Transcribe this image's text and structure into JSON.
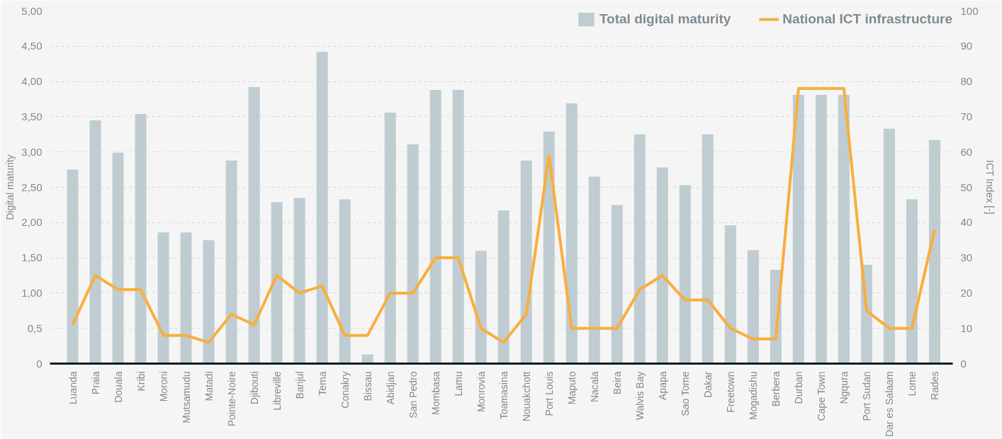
{
  "chart_data": {
    "type": "bar",
    "ylabel": "Digital maturity",
    "y2label": "ICT Index [-]",
    "categories": [
      "Luanda",
      "Praia",
      "Douala",
      "Kribi",
      "Moroni",
      "Mutsamudu",
      "Matadi",
      "Pointe-Noire",
      "Djibouti",
      "Libreville",
      "Banjul",
      "Tema",
      "Conakry",
      "Bissau",
      "Abidjan",
      "San Pedro",
      "Mombasa",
      "Lamu",
      "Monrovia",
      "Toamasina",
      "Nouakchott",
      "Port Louis",
      "Maputo",
      "Nacala",
      "Beira",
      "Walvis Bay",
      "Apapa",
      "Sao Tome",
      "Dakar",
      "Freetown",
      "Mogadishu",
      "Berbera",
      "Durban",
      "Cape Town",
      "Ngqura",
      "Port Sudan",
      "Dar es Salaam",
      "Lome",
      "Rades"
    ],
    "series": [
      {
        "name": "Total digital maturity",
        "color": "#bfccd1",
        "values": [
          2.75,
          3.45,
          2.99,
          3.54,
          1.86,
          1.86,
          1.75,
          2.88,
          3.92,
          2.29,
          2.35,
          4.42,
          2.33,
          0.13,
          3.56,
          3.11,
          3.88,
          3.88,
          1.6,
          2.17,
          2.88,
          3.29,
          3.69,
          2.65,
          2.25,
          3.25,
          2.78,
          2.53,
          3.25,
          1.96,
          1.61,
          1.33,
          3.81,
          3.81,
          3.81,
          1.4,
          3.33,
          2.33,
          3.17
        ]
      },
      {
        "name": "National ICT infrastructure",
        "type": "line",
        "axis": "y2",
        "color": "#f9ae3c",
        "values": [
          11,
          25,
          21,
          21,
          8,
          8,
          6,
          14,
          11,
          25,
          20,
          22,
          8,
          8,
          20,
          20,
          30,
          30,
          10,
          6,
          14,
          59,
          10,
          10,
          10,
          21,
          25,
          18,
          18,
          10,
          7,
          7,
          78,
          78,
          78,
          15,
          10,
          10,
          38
        ]
      }
    ],
    "ylim": [
      0,
      5
    ],
    "yticks": [
      0,
      {
        "value": 0.5,
        "label": "0,5"
      },
      {
        "value": 1,
        "label": "1,00"
      },
      {
        "value": 1.5,
        "label": "1,50"
      },
      {
        "value": 2,
        "label": "2,00"
      },
      {
        "value": 2.5,
        "label": "2,50"
      },
      {
        "value": 3,
        "label": "3,00"
      },
      {
        "value": 3.5,
        "label": "3,50"
      },
      {
        "value": 4,
        "label": "4,00"
      },
      {
        "value": 4.5,
        "label": "4,50"
      },
      {
        "value": 5,
        "label": "5,00"
      }
    ],
    "y2lim": [
      0,
      100
    ],
    "y2ticks": [
      0,
      10,
      20,
      30,
      40,
      50,
      60,
      70,
      80,
      90,
      100
    ],
    "grid": "y",
    "legend": "top right",
    "line_style": "solid",
    "marker": "none"
  }
}
